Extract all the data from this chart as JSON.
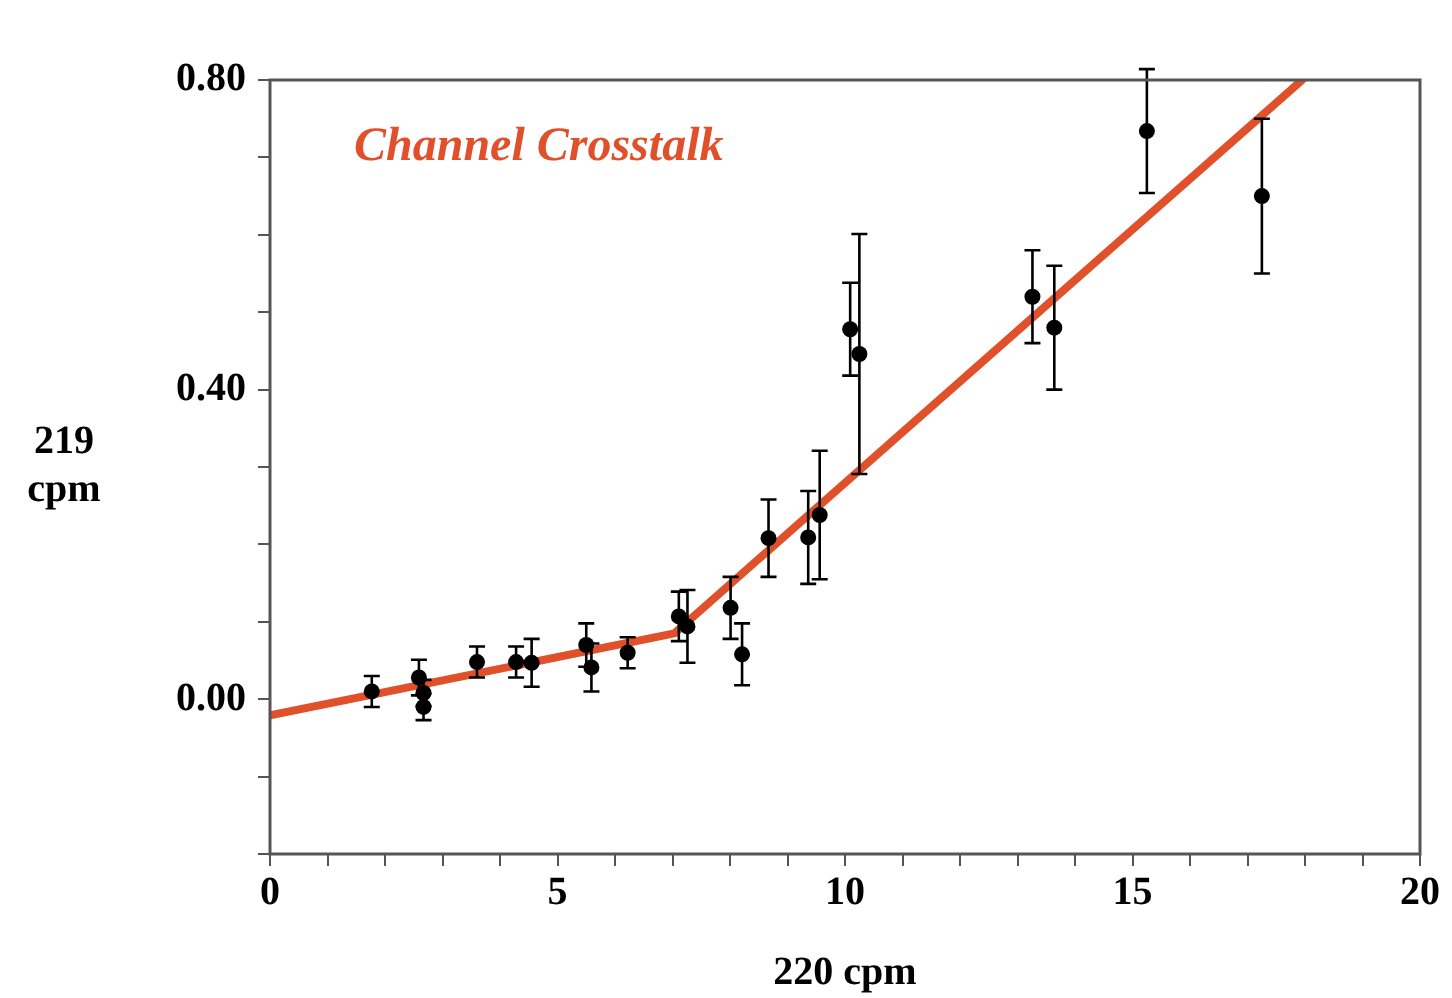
{
  "chart_data": {
    "type": "scatter",
    "xlabel": "220 cpm",
    "ylabel": "219\ncpm",
    "xlim": [
      0,
      20
    ],
    "ylim": [
      -0.2,
      0.8
    ],
    "xticks": [
      0,
      {
        "value": 1,
        "label": null
      },
      {
        "value": 2,
        "label": null
      },
      {
        "value": 3,
        "label": null
      },
      {
        "value": 4,
        "label": null
      },
      5,
      {
        "value": 6,
        "label": null
      },
      {
        "value": 7,
        "label": null
      },
      {
        "value": 8,
        "label": null
      },
      {
        "value": 9,
        "label": null
      },
      10,
      {
        "value": 11,
        "label": null
      },
      {
        "value": 12,
        "label": null
      },
      {
        "value": 13,
        "label": null
      },
      {
        "value": 14,
        "label": null
      },
      15,
      {
        "value": 16,
        "label": null
      },
      {
        "value": 17,
        "label": null
      },
      {
        "value": 18,
        "label": null
      },
      {
        "value": 19,
        "label": null
      },
      20
    ],
    "yticks": [
      {
        "value": -0.2,
        "label": null
      },
      {
        "value": -0.1,
        "label": null
      },
      {
        "value": 0,
        "label": "0.00"
      },
      {
        "value": 0.1,
        "label": null
      },
      {
        "value": 0.2,
        "label": null
      },
      {
        "value": 0.3,
        "label": null
      },
      {
        "value": 0.4,
        "label": "0.40"
      },
      {
        "value": 0.5,
        "label": null
      },
      {
        "value": 0.6,
        "label": null
      },
      {
        "value": 0.7,
        "label": null
      },
      {
        "value": 0.8,
        "label": "0.80"
      }
    ],
    "grid": false,
    "legend": false,
    "marker": "circle",
    "series": [
      {
        "color": "#000000",
        "x": [
          1.77,
          2.59,
          2.67,
          2.67,
          3.6,
          4.28,
          4.55,
          5.5,
          5.59,
          6.22,
          7.11,
          7.26,
          8.01,
          8.21,
          8.67,
          9.36,
          9.56,
          10.09,
          10.25,
          13.26,
          13.64,
          15.25,
          17.25
        ],
        "values": [
          0.01,
          0.028,
          0.008,
          -0.01,
          0.048,
          0.048,
          0.047,
          0.07,
          0.041,
          0.06,
          0.107,
          0.094,
          0.118,
          0.058,
          0.208,
          0.209,
          0.238,
          0.478,
          0.446,
          0.52,
          0.48,
          0.734,
          0.65
        ],
        "errors": [
          0.02,
          0.023,
          0.017,
          0.017,
          0.02,
          0.02,
          0.031,
          0.028,
          0.031,
          0.02,
          0.032,
          0.047,
          0.04,
          0.04,
          0.05,
          0.06,
          0.083,
          0.06,
          0.155,
          0.06,
          0.08,
          0.08,
          0.1
        ]
      },
      {
        "type": "line",
        "name": "Channel Crosstalk",
        "color": "#e0502a",
        "marker": "none",
        "line_style": "solid",
        "x": [
          0,
          7.03,
          17.95
        ],
        "values": [
          -0.021,
          0.085,
          0.8
        ]
      }
    ]
  }
}
